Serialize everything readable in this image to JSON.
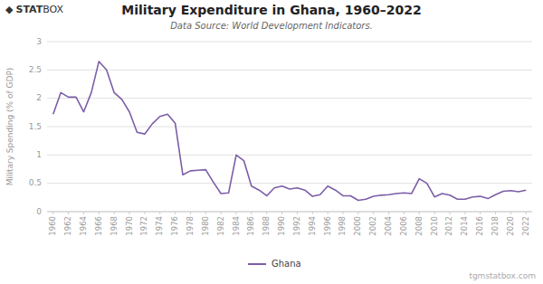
{
  "chart_data": {
    "type": "line",
    "title": "Military Expenditure in Ghana, 1960–2022",
    "subtitle": "Data Source: World Development Indicators.",
    "y_label": "Military Spending (% of GDP)",
    "annotations": [
      "◆",
      "STAT",
      "BOX",
      "tgmstatbox.com"
    ],
    "x": [
      1960,
      1961,
      1962,
      1963,
      1964,
      1965,
      1966,
      1967,
      1968,
      1969,
      1970,
      1971,
      1972,
      1973,
      1974,
      1975,
      1976,
      1977,
      1978,
      1979,
      1980,
      1981,
      1982,
      1983,
      1984,
      1985,
      1986,
      1987,
      1988,
      1989,
      1990,
      1991,
      1992,
      1993,
      1994,
      1995,
      1996,
      1997,
      1998,
      1999,
      2000,
      2001,
      2002,
      2003,
      2004,
      2005,
      2006,
      2007,
      2008,
      2009,
      2010,
      2011,
      2012,
      2013,
      2014,
      2015,
      2016,
      2017,
      2018,
      2019,
      2020,
      2021,
      2022
    ],
    "series": [
      {
        "name": "Ghana",
        "color": "#7B5EA7",
        "values": [
          1.72,
          2.1,
          2.02,
          2.02,
          1.76,
          2.1,
          2.65,
          2.5,
          2.1,
          1.98,
          1.76,
          1.4,
          1.37,
          1.55,
          1.68,
          1.72,
          1.56,
          0.65,
          0.72,
          0.73,
          0.74,
          0.52,
          0.32,
          0.33,
          1.0,
          0.9,
          0.45,
          0.38,
          0.28,
          0.42,
          0.45,
          0.4,
          0.42,
          0.38,
          0.27,
          0.3,
          0.45,
          0.38,
          0.28,
          0.28,
          0.2,
          0.22,
          0.27,
          0.29,
          0.3,
          0.32,
          0.33,
          0.32,
          0.58,
          0.5,
          0.26,
          0.32,
          0.29,
          0.22,
          0.22,
          0.26,
          0.27,
          0.23,
          0.3,
          0.36,
          0.37,
          0.35,
          0.38
        ]
      }
    ],
    "xlim": [
      1959.2,
      2022.8
    ],
    "xticks": [
      1960,
      1962,
      1964,
      1966,
      1968,
      1970,
      1972,
      1974,
      1976,
      1978,
      1980,
      1982,
      1984,
      1986,
      1988,
      1990,
      1992,
      1994,
      1996,
      1998,
      2000,
      2002,
      2004,
      2006,
      2008,
      2010,
      2012,
      2014,
      2016,
      2018,
      2020,
      2022
    ],
    "ylim": [
      0,
      3.0
    ],
    "yticks": [
      0,
      0.5,
      1,
      1.5,
      2,
      2.5,
      3
    ],
    "grid": true,
    "legend": "bottom"
  }
}
